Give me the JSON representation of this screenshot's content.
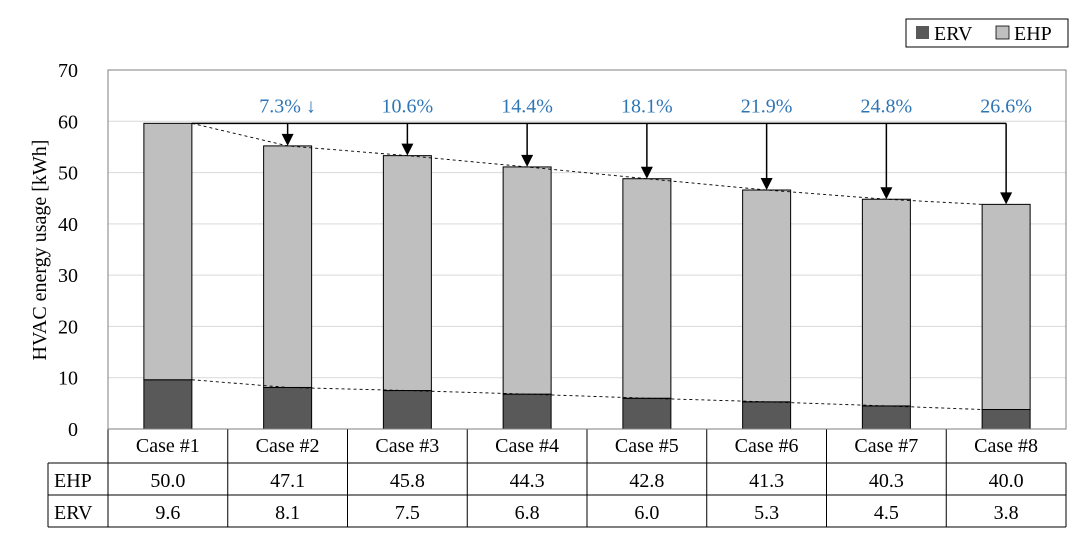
{
  "chart_data": {
    "type": "bar",
    "stacked": true,
    "categories": [
      "Case #1",
      "Case #2",
      "Case #3",
      "Case #4",
      "Case #5",
      "Case #6",
      "Case #7",
      "Case #8"
    ],
    "series": [
      {
        "name": "ERV",
        "values": [
          9.6,
          8.1,
          7.5,
          6.8,
          6.0,
          5.3,
          4.5,
          3.8
        ],
        "color": "#595959"
      },
      {
        "name": "EHP",
        "values": [
          50.0,
          47.1,
          45.8,
          44.3,
          42.8,
          41.3,
          40.3,
          40.0
        ],
        "color": "#bfbfbf"
      }
    ],
    "ylabel": "HVAC energy usage [kWh]",
    "ylim": [
      0,
      70
    ],
    "yticks": [
      0,
      10,
      20,
      30,
      40,
      50,
      60,
      70
    ],
    "grid": true,
    "legend": {
      "position": "top-right",
      "entries": [
        "ERV",
        "EHP"
      ]
    },
    "reductions": [
      "7.3% ↓",
      "10.6%",
      "14.4%",
      "18.1%",
      "21.9%",
      "24.8%",
      "26.6%"
    ],
    "reduction_color": "#2e75b6",
    "table": {
      "rows": [
        {
          "label": "EHP",
          "values": [
            "50.0",
            "47.1",
            "45.8",
            "44.3",
            "42.8",
            "41.3",
            "40.3",
            "40.0"
          ]
        },
        {
          "label": "ERV",
          "values": [
            "9.6",
            "8.1",
            "7.5",
            "6.8",
            "6.0",
            "5.3",
            "4.5",
            "3.8"
          ]
        }
      ]
    }
  }
}
